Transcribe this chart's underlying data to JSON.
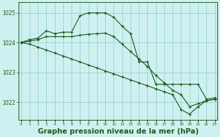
{
  "title": "Graphe pression niveau de la mer (hPa)",
  "bg_color": "#cff0f0",
  "grid_color": "#88cccc",
  "line_color": "#1a5c1a",
  "marker_color": "#1a5c1a",
  "hours": [
    0,
    1,
    2,
    3,
    4,
    5,
    6,
    7,
    8,
    9,
    10,
    11,
    12,
    13,
    14,
    15,
    16,
    17,
    18,
    19,
    20,
    21,
    22,
    23
  ],
  "series1": [
    1024.0,
    1024.1,
    1024.15,
    1024.4,
    1024.3,
    1024.35,
    1024.35,
    1024.9,
    1025.0,
    1025.0,
    1025.0,
    1024.85,
    1024.55,
    1024.3,
    1023.35,
    1023.35,
    1022.6,
    1022.6,
    1022.6,
    1022.6,
    1022.6,
    1022.6,
    1022.1,
    1022.15
  ],
  "series2": [
    1024.0,
    1024.05,
    1024.1,
    1024.2,
    1024.2,
    1024.2,
    1024.2,
    1024.25,
    1024.28,
    1024.3,
    1024.32,
    1024.2,
    1023.95,
    1023.7,
    1023.45,
    1023.2,
    1022.9,
    1022.65,
    1022.4,
    1022.25,
    1021.85,
    1021.95,
    1022.05,
    1022.1
  ],
  "series3": [
    1024.0,
    1023.95,
    1023.85,
    1023.75,
    1023.65,
    1023.55,
    1023.45,
    1023.35,
    1023.25,
    1023.15,
    1023.05,
    1022.95,
    1022.85,
    1022.75,
    1022.65,
    1022.55,
    1022.45,
    1022.35,
    1022.25,
    1021.75,
    1021.6,
    1021.85,
    1022.05,
    1022.1
  ],
  "ylim": [
    1021.4,
    1025.35
  ],
  "yticks": [
    1022,
    1023,
    1024,
    1025
  ],
  "title_fontsize": 7.5
}
